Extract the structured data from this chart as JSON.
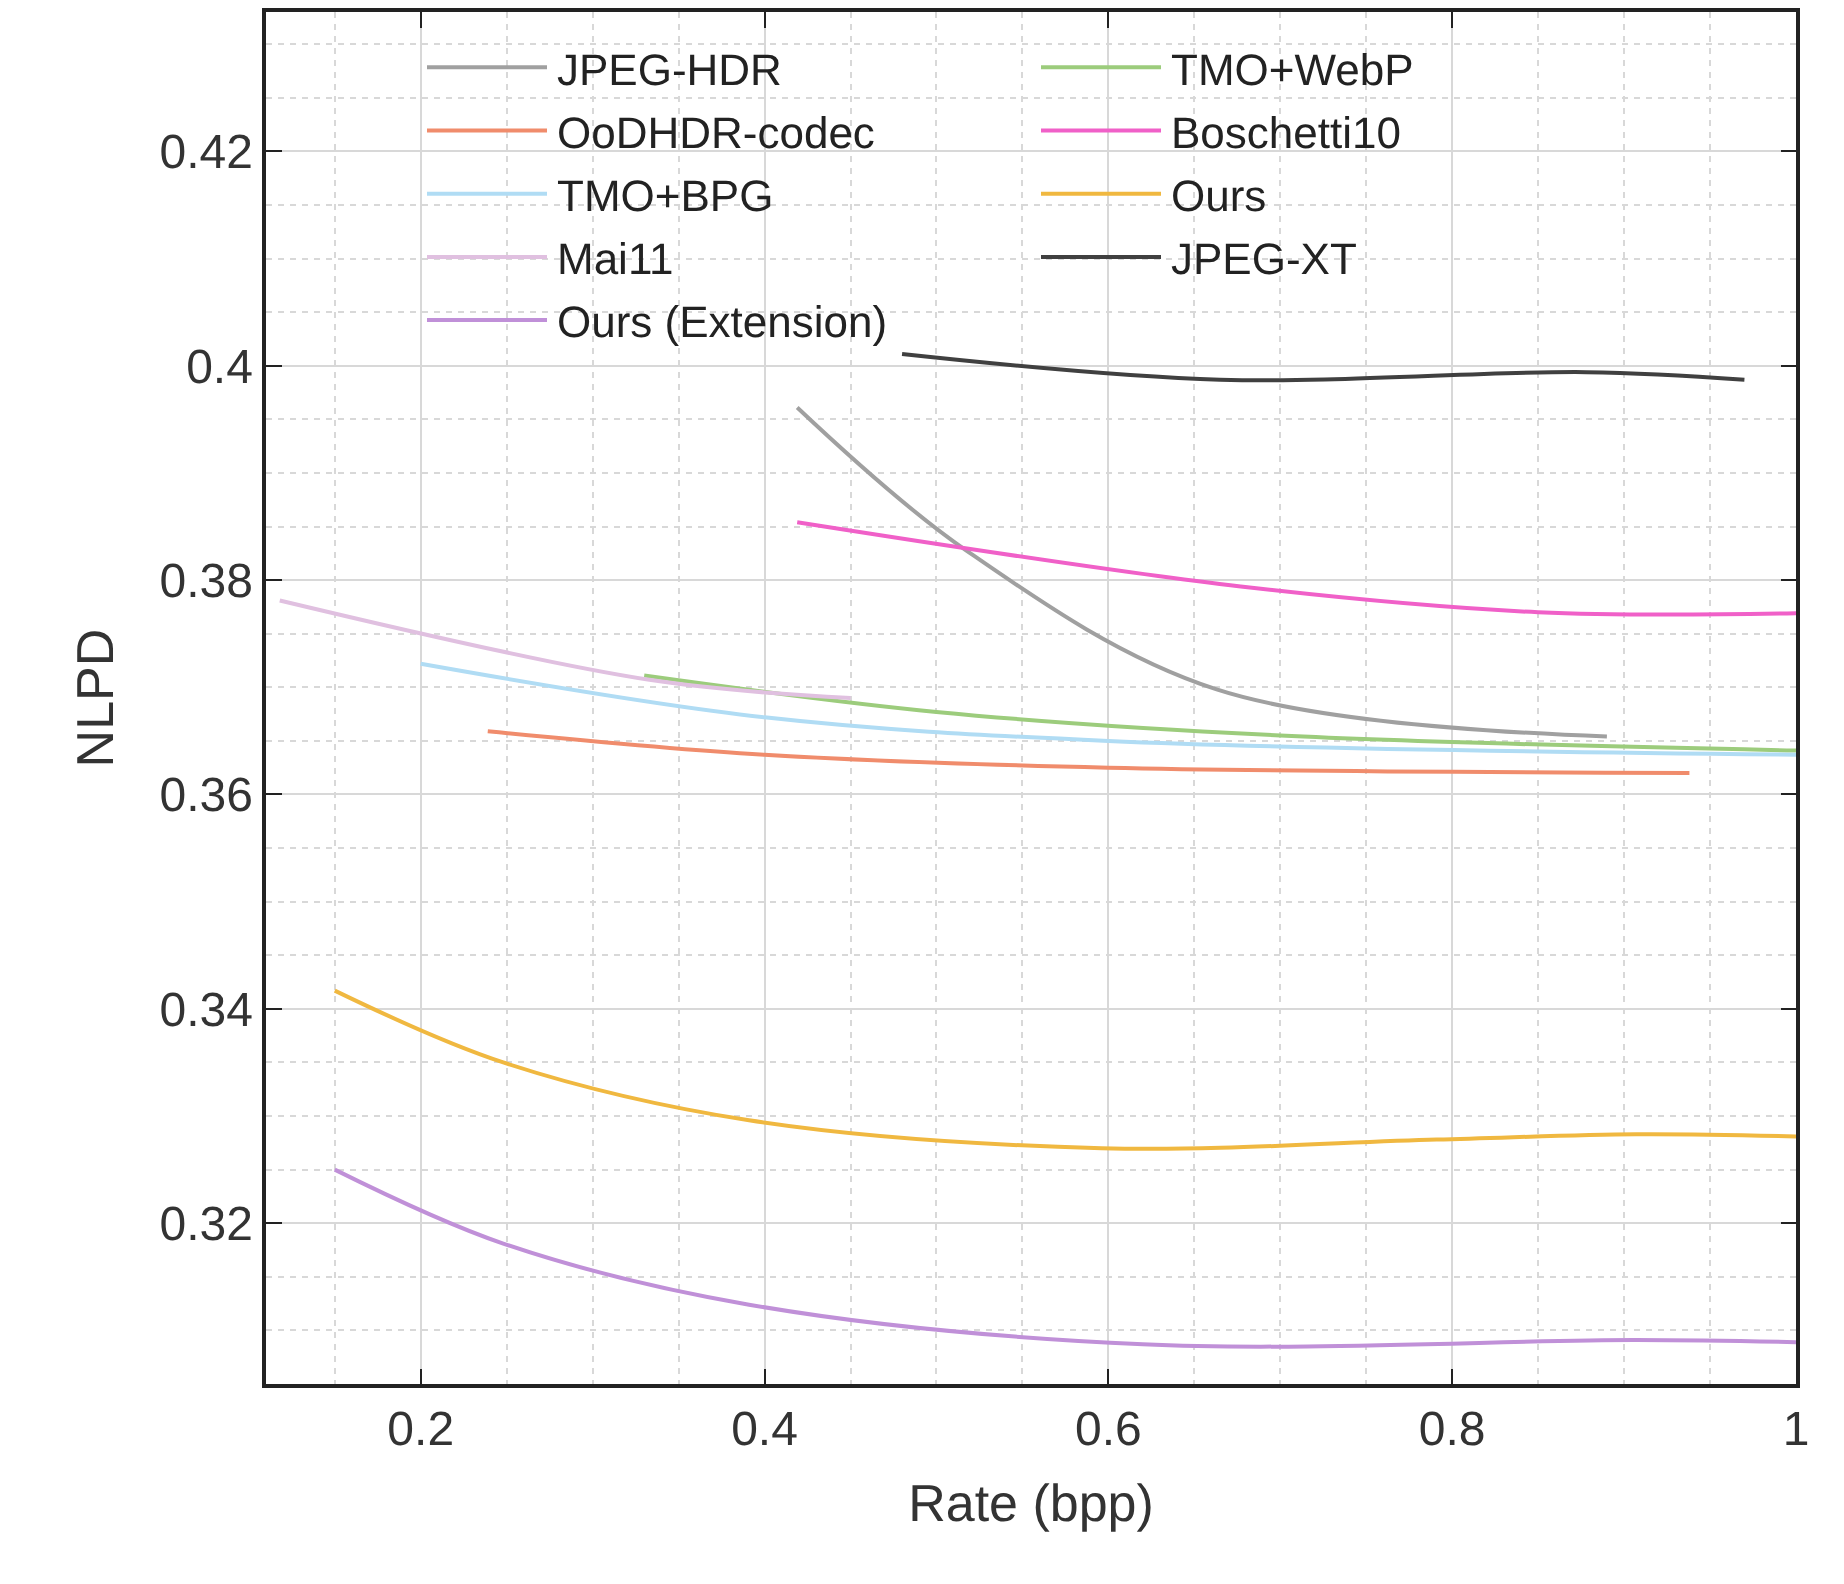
{
  "chart_data": {
    "type": "line",
    "xlabel": "Rate (bpp)",
    "ylabel": "NLPD",
    "xlim": [
      0.11,
      1
    ],
    "ylim": [
      0.305,
      0.433
    ],
    "xticks": [
      0.2,
      0.4,
      0.6,
      0.8,
      1
    ],
    "yticks": [
      0.32,
      0.34,
      0.36,
      0.38,
      0.4,
      0.42
    ],
    "grid": true,
    "legend": "top",
    "marker": "none",
    "line_style": "solid",
    "series": [
      {
        "name": "JPEG-HDR",
        "color": "#a0a0a0",
        "x": [
          0.419,
          0.517,
          0.663,
          0.89
        ],
        "values": [
          0.3961,
          0.3828,
          0.3698,
          0.3654
        ]
      },
      {
        "name": "TMO+WebP",
        "color": "#9ccc7c",
        "x": [
          0.33,
          0.5,
          0.7,
          1.0
        ],
        "values": [
          0.3711,
          0.3677,
          0.3655,
          0.3641
        ]
      },
      {
        "name": "OoDHDR-codec",
        "color": "#f08c6c",
        "x": [
          0.239,
          0.4,
          0.6,
          0.938
        ],
        "values": [
          0.3659,
          0.3637,
          0.3625,
          0.362
        ]
      },
      {
        "name": "Boschetti10",
        "color": "#f060c8",
        "x": [
          0.419,
          0.677,
          0.85,
          1.0
        ],
        "values": [
          0.3854,
          0.3794,
          0.377,
          0.3769
        ]
      },
      {
        "name": "TMO+BPG",
        "color": "#b0dcf4",
        "x": [
          0.2,
          0.4,
          0.6,
          1.0
        ],
        "values": [
          0.3722,
          0.3672,
          0.365,
          0.3637
        ]
      },
      {
        "name": "Ours",
        "color": "#f0b840",
        "x": [
          0.15,
          0.248,
          0.391,
          0.596,
          0.791,
          0.907,
          1.0
        ],
        "values": [
          0.3417,
          0.335,
          0.3296,
          0.327,
          0.3278,
          0.3283,
          0.3281
        ]
      },
      {
        "name": "Mai11",
        "color": "#e0c0e0",
        "x": [
          0.118,
          0.333,
          0.45
        ],
        "values": [
          0.3781,
          0.3707,
          0.369
        ]
      },
      {
        "name": "JPEG-XT",
        "color": "#404040",
        "x": [
          0.48,
          0.665,
          0.878,
          0.97
        ],
        "values": [
          0.4011,
          0.3987,
          0.3994,
          0.3987
        ]
      },
      {
        "name": "Ours (Extension)",
        "color": "#c090d8",
        "x": [
          0.15,
          0.248,
          0.391,
          0.62,
          0.907,
          1.0
        ],
        "values": [
          0.325,
          0.3181,
          0.3124,
          0.3087,
          0.3091,
          0.3089
        ]
      }
    ]
  }
}
